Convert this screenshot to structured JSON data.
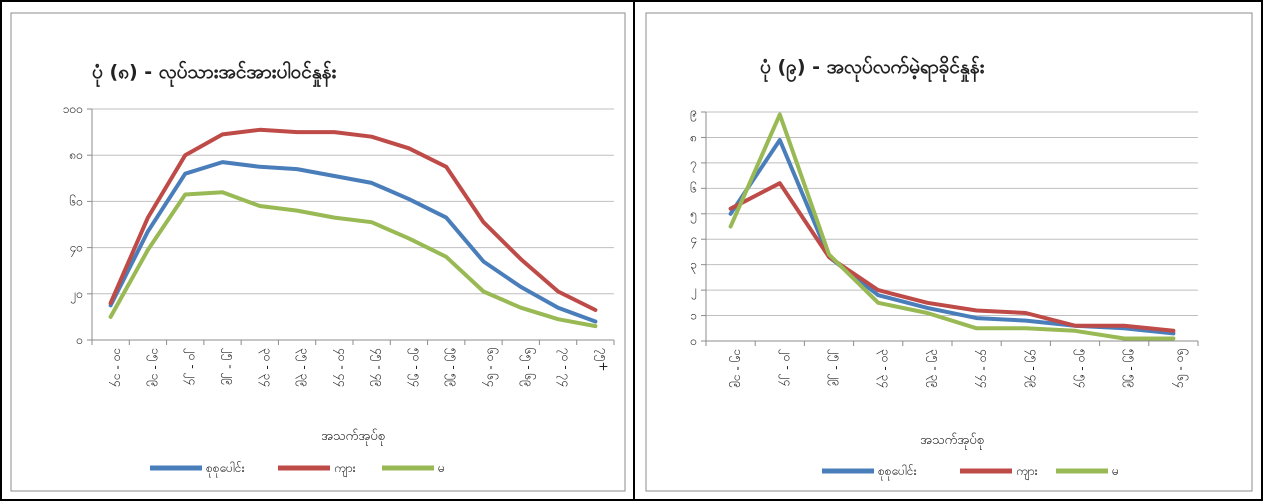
{
  "chart_data": [
    {
      "type": "line",
      "title": "ပုံ (၈) - လုပ်သားအင်အားပါဝင်နှုန်း",
      "xlabel": "အသက်အုပ်စု",
      "ylabel": "",
      "categories": [
        "၁၀ - ၁၄",
        "၁၅ - ၁၉",
        "၂၀ - ၂၄",
        "၂၅ - ၂၉",
        "၃၀ - ၃၄",
        "၃၅ - ၃၉",
        "၄၀ - ၄၄",
        "၄၅ - ၄၉",
        "၅၀ - ၅၄",
        "၅၅ - ၅၉",
        "၆၀ - ၆၄",
        "၆၅ - ၆၉",
        "၇၀ - ၇၄",
        "၇၅+"
      ],
      "ylim": [
        0,
        100
      ],
      "yticks": [
        0,
        20,
        40,
        60,
        80,
        100
      ],
      "ytick_labels": [
        "၀",
        "၂၀",
        "၄၀",
        "၆၀",
        "၈၀",
        "၁၀၀"
      ],
      "grid": true,
      "legend_position": "bottom",
      "series": [
        {
          "name": "စုစုပေါင်း",
          "color": "#4a7ebb",
          "values": [
            15,
            47,
            72,
            77,
            75,
            74,
            71,
            68,
            61,
            53,
            34,
            23,
            14,
            8
          ]
        },
        {
          "name": "ကျား",
          "color": "#be4b48",
          "values": [
            16,
            53,
            80,
            89,
            91,
            90,
            90,
            88,
            83,
            75,
            51,
            35,
            21,
            13
          ]
        },
        {
          "name": "မ",
          "color": "#98b954",
          "values": [
            10,
            39,
            63,
            64,
            58,
            56,
            53,
            51,
            44,
            36,
            21,
            14,
            9,
            6
          ]
        }
      ]
    },
    {
      "type": "line",
      "title": "ပုံ (၉) - အလုပ်လက်မဲ့ရာခိုင်နှုန်း",
      "xlabel": "အသက်အုပ်စု",
      "ylabel": "",
      "categories": [
        "၁၅ - ၁၉",
        "၂၀ - ၂၄",
        "၂၅ - ၂၉",
        "၃၀ - ၃၄",
        "၃၅ - ၃၉",
        "၄၀ - ၄၄",
        "၄၅ - ၄၉",
        "၅၀ - ၅၄",
        "၅၅ - ၅၉",
        "၆၀ - ၆၄"
      ],
      "ylim": [
        0,
        9
      ],
      "yticks": [
        0,
        1,
        2,
        3,
        4,
        5,
        6,
        7,
        8,
        9
      ],
      "ytick_labels": [
        "၀",
        "၁",
        "၂",
        "၃",
        "၄",
        "၅",
        "၆",
        "၇",
        "၈",
        "၉"
      ],
      "grid": true,
      "legend_position": "bottom",
      "series": [
        {
          "name": "စုစုပေါင်း",
          "color": "#4a7ebb",
          "values": [
            5.0,
            7.9,
            3.3,
            1.8,
            1.3,
            0.9,
            0.8,
            0.6,
            0.5,
            0.3
          ]
        },
        {
          "name": "ကျား",
          "color": "#be4b48",
          "values": [
            5.2,
            6.2,
            3.3,
            2.0,
            1.5,
            1.2,
            1.1,
            0.6,
            0.6,
            0.4
          ]
        },
        {
          "name": "မ",
          "color": "#98b954",
          "values": [
            4.5,
            8.9,
            3.4,
            1.5,
            1.1,
            0.5,
            0.5,
            0.4,
            0.1,
            0.1
          ]
        }
      ]
    }
  ]
}
